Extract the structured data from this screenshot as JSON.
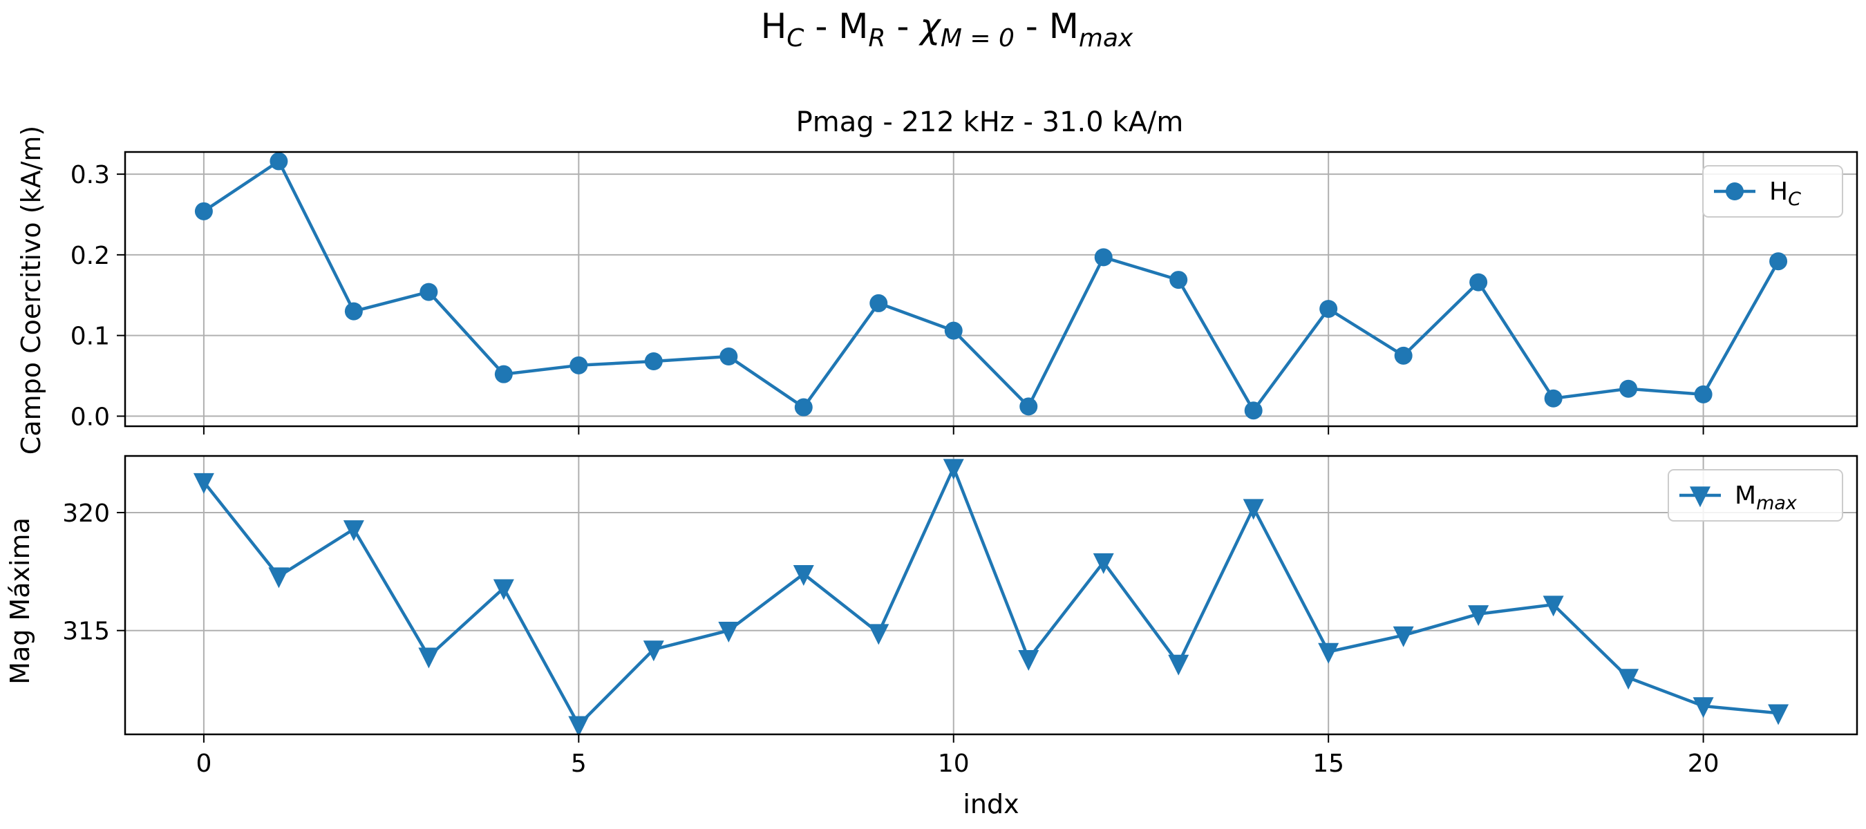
{
  "figure": {
    "suptitle": {
      "H": "H",
      "C": "C",
      "dash1": " - ",
      "M": "M",
      "R": "R",
      "dash2": " - ",
      "chi": "χ",
      "chi_sub": "M = 0",
      "dash3": " - ",
      "M2": "M",
      "max": "max"
    },
    "subtitle": "Pmag - 212 kHz - 31.0 kA/m",
    "xlabel": "indx"
  },
  "chart_data": [
    {
      "type": "line",
      "ylabel": "Campo Coercitivo (kA/m)",
      "marker": "circle",
      "color": "#1f77b4",
      "legend": {
        "main": "H",
        "sub": "C",
        "placement": "upper right"
      },
      "grid": true,
      "xlim": [
        -1.05,
        22.05
      ],
      "ylim": [
        -0.0125,
        0.3275
      ],
      "yticks": [
        0.0,
        0.1,
        0.2,
        0.3
      ],
      "ytick_labels": [
        "0.0",
        "0.1",
        "0.2",
        "0.3"
      ],
      "x": [
        0,
        1,
        2,
        3,
        4,
        5,
        6,
        7,
        8,
        9,
        10,
        11,
        12,
        13,
        14,
        15,
        16,
        17,
        18,
        19,
        20,
        21
      ],
      "values": [
        0.254,
        0.316,
        0.13,
        0.154,
        0.052,
        0.063,
        0.068,
        0.074,
        0.011,
        0.14,
        0.106,
        0.012,
        0.197,
        0.169,
        0.007,
        0.133,
        0.075,
        0.166,
        0.022,
        0.034,
        0.027,
        0.192
      ]
    },
    {
      "type": "line",
      "ylabel": "Mag Máxima",
      "marker": "triangle-down",
      "color": "#1f77b4",
      "legend": {
        "main": "M",
        "sub": "max",
        "placement": "upper right"
      },
      "grid": true,
      "xlim": [
        -1.05,
        22.05
      ],
      "ylim": [
        310.6,
        322.4
      ],
      "yticks": [
        315,
        320
      ],
      "ytick_labels": [
        "315",
        "320"
      ],
      "xticks": [
        0,
        5,
        10,
        15,
        20
      ],
      "xtick_labels": [
        "0",
        "5",
        "10",
        "15",
        "20"
      ],
      "x": [
        0,
        1,
        2,
        3,
        4,
        5,
        6,
        7,
        8,
        9,
        10,
        11,
        12,
        13,
        14,
        15,
        16,
        17,
        18,
        19,
        20,
        21
      ],
      "values": [
        321.3,
        317.3,
        319.3,
        313.9,
        316.8,
        311.0,
        314.2,
        315.0,
        317.4,
        314.9,
        321.9,
        313.8,
        317.9,
        313.6,
        320.2,
        314.1,
        314.8,
        315.7,
        316.1,
        313.0,
        311.8,
        311.5
      ]
    }
  ]
}
